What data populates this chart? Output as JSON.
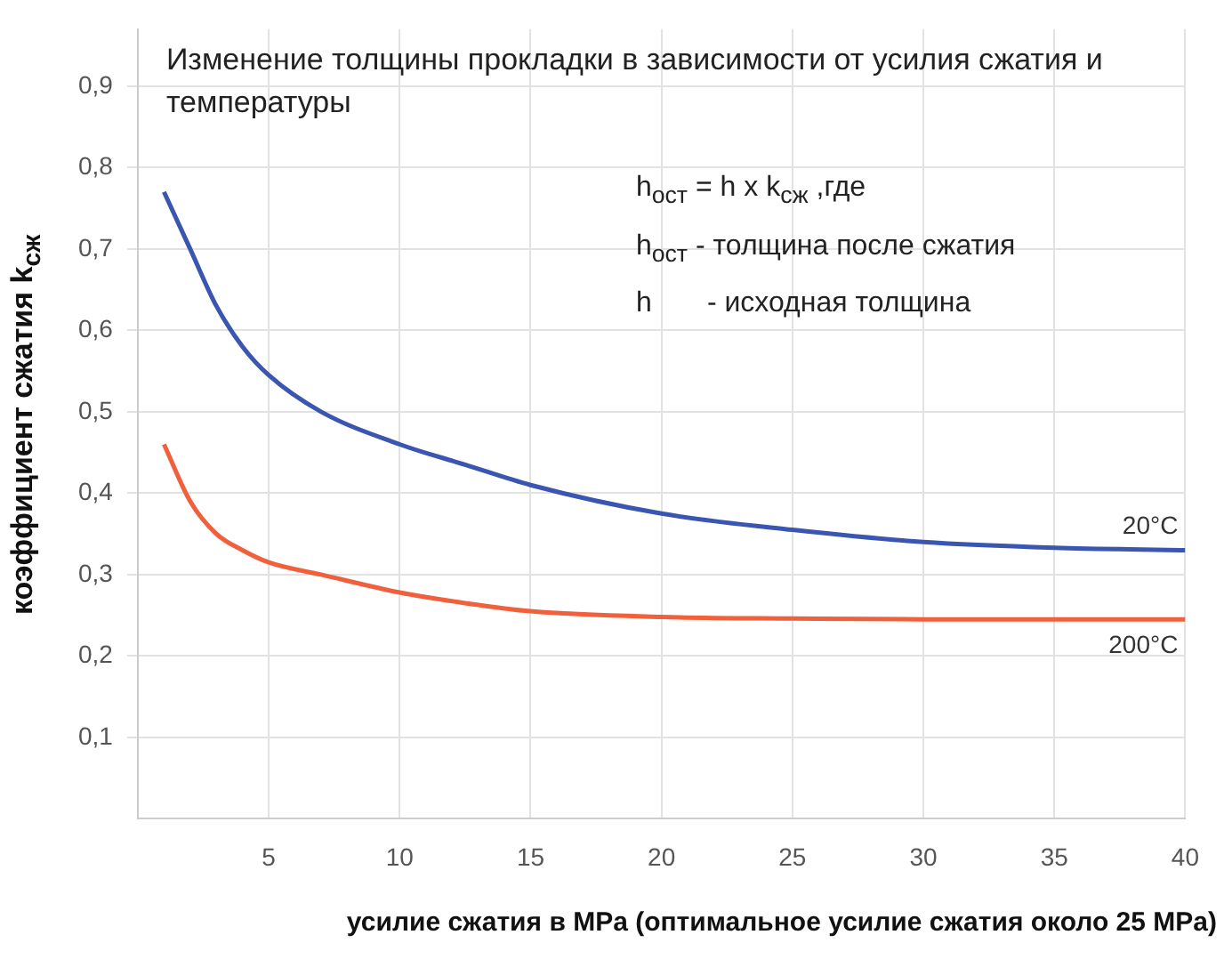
{
  "chart_data": {
    "type": "line",
    "title": "Изменение толщины прокладки в зависимости от усилия сжатия и температуры",
    "annotations": [
      "h$_{ост}$ = h x k$_{сж}$ ,где",
      "h$_{ост}$ - толщина после сжатия",
      "h       - исходная толщина"
    ],
    "xlabel": "усилие сжатия в MPa (оптимальное усилие сжатия около 25 MPa)",
    "ylabel": "коэффициент сжатия k$_{сж}$",
    "x": [
      1,
      2,
      3,
      4,
      5,
      7,
      10,
      12.5,
      15,
      20,
      25,
      30,
      35,
      40
    ],
    "series": [
      {
        "name": "20°C",
        "color": "#3a56b0",
        "values": [
          0.77,
          0.7,
          0.63,
          0.58,
          0.545,
          0.5,
          0.46,
          0.435,
          0.41,
          0.375,
          0.355,
          0.34,
          0.333,
          0.33
        ]
      },
      {
        "name": "200°C",
        "color": "#f0603c",
        "values": [
          0.46,
          0.39,
          0.35,
          0.33,
          0.315,
          0.3,
          0.278,
          0.265,
          0.255,
          0.248,
          0.246,
          0.245,
          0.245,
          0.245
        ]
      }
    ],
    "xlim": [
      0,
      40
    ],
    "xticks": [
      5,
      10,
      15,
      20,
      25,
      30,
      35,
      40
    ],
    "ylim": [
      0,
      0.97
    ],
    "yticks": [
      {
        "value": 0.1,
        "label": "0,1"
      },
      {
        "value": 0.2,
        "label": "0,2"
      },
      {
        "value": 0.3,
        "label": "0,3"
      },
      {
        "value": 0.4,
        "label": "0,4"
      },
      {
        "value": 0.5,
        "label": "0,5"
      },
      {
        "value": 0.6,
        "label": "0,6"
      },
      {
        "value": 0.7,
        "label": "0,7"
      },
      {
        "value": 0.8,
        "label": "0,8"
      },
      {
        "value": 0.9,
        "label": "0,9"
      }
    ],
    "grid": true,
    "legend": false,
    "marker": "none",
    "line_style": "solid"
  }
}
